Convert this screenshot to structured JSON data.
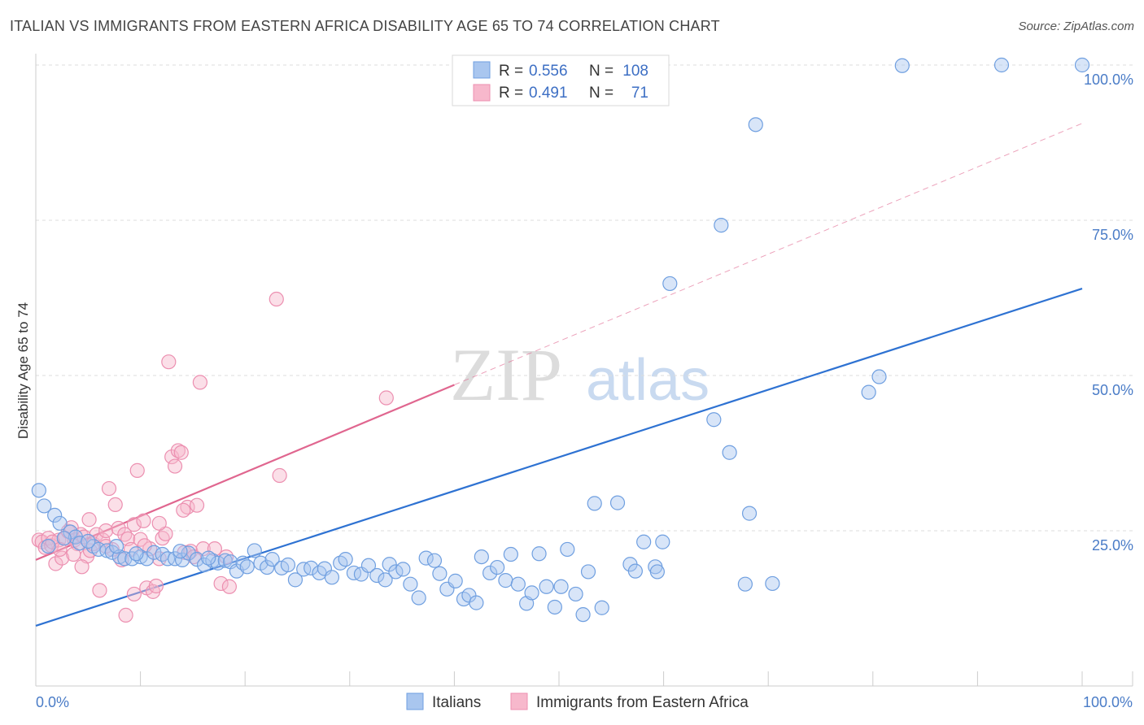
{
  "header": {
    "title": "ITALIAN VS IMMIGRANTS FROM EASTERN AFRICA DISABILITY AGE 65 TO 74 CORRELATION CHART",
    "source": "Source: ZipAtlas.com"
  },
  "watermark": {
    "zip": "ZIP",
    "atlas": "atlas"
  },
  "colors": {
    "blue_fill": "#a9c6ef",
    "blue_stroke": "#6f9fe0",
    "blue_line": "#2e72d2",
    "pink_fill": "#f7b8cc",
    "pink_stroke": "#ec8fb0",
    "pink_line": "#e0668f",
    "tick_color": "#4a7cc7",
    "grid": "#dddddd"
  },
  "legend_top": {
    "rows": [
      {
        "r_label": "R =",
        "r_value": "0.556",
        "n_label": "N =",
        "n_value": "108",
        "series": "blue"
      },
      {
        "r_label": "R =",
        "r_value": "0.491",
        "n_label": "N =",
        "n_value": "71",
        "series": "pink"
      }
    ]
  },
  "chart_data": {
    "type": "scatter",
    "title": "ITALIAN VS IMMIGRANTS FROM EASTERN AFRICA DISABILITY AGE 65 TO 74 CORRELATION CHART",
    "xlabel": "",
    "ylabel": "Disability Age 65 to 74",
    "xlim": [
      0,
      100
    ],
    "ylim": [
      0,
      100
    ],
    "x_tick_labels": [
      "0.0%",
      "100.0%"
    ],
    "y_ticks": [
      25,
      50,
      75,
      100
    ],
    "y_tick_labels": [
      "25.0%",
      "50.0%",
      "75.0%",
      "100.0%"
    ],
    "grid": true,
    "legend_position": "bottom",
    "series": [
      {
        "name": "Italians",
        "color": "#a9c6ef",
        "trend": {
          "x0": 0,
          "y0": 9.7,
          "x1": 100,
          "y1": 64,
          "style": "solid"
        },
        "points": [
          [
            0.3,
            31.5
          ],
          [
            0.8,
            29
          ],
          [
            1.8,
            27.5
          ],
          [
            2.3,
            26.2
          ],
          [
            3.3,
            24.8
          ],
          [
            3.8,
            24
          ],
          [
            4.2,
            23
          ],
          [
            5.5,
            22.5
          ],
          [
            6,
            22
          ],
          [
            6.8,
            21.8
          ],
          [
            7.3,
            21.5
          ],
          [
            8,
            20.8
          ],
          [
            8.5,
            20.5
          ],
          [
            9.2,
            20.5
          ],
          [
            10,
            20.8
          ],
          [
            10.6,
            20.5
          ],
          [
            11.3,
            21.5
          ],
          [
            12.1,
            21.2
          ],
          [
            12.6,
            20.5
          ],
          [
            13.3,
            20.5
          ],
          [
            14,
            20.3
          ],
          [
            14.6,
            21.4
          ],
          [
            15.4,
            20.4
          ],
          [
            16.1,
            19.5
          ],
          [
            16.9,
            20.2
          ],
          [
            17.4,
            19.8
          ],
          [
            18.1,
            20.2
          ],
          [
            18.6,
            20
          ],
          [
            19.2,
            18.5
          ],
          [
            19.8,
            19.8
          ],
          [
            20.2,
            19.2
          ],
          [
            20.9,
            21.8
          ],
          [
            21.5,
            19.8
          ],
          [
            22.1,
            19.1
          ],
          [
            22.6,
            20.4
          ],
          [
            23.5,
            19
          ],
          [
            24.1,
            19.5
          ],
          [
            24.8,
            17.1
          ],
          [
            25.6,
            18.8
          ],
          [
            26.3,
            19
          ],
          [
            27.1,
            18.2
          ],
          [
            27.6,
            18.9
          ],
          [
            28.3,
            17.5
          ],
          [
            29.1,
            19.8
          ],
          [
            29.6,
            20.4
          ],
          [
            30.4,
            18.2
          ],
          [
            31.1,
            18
          ],
          [
            31.8,
            19.4
          ],
          [
            32.6,
            17.8
          ],
          [
            33.4,
            17.1
          ],
          [
            33.8,
            19.6
          ],
          [
            34.4,
            18.4
          ],
          [
            35.1,
            18.8
          ],
          [
            35.8,
            16.4
          ],
          [
            36.6,
            14.2
          ],
          [
            37.3,
            20.6
          ],
          [
            38.1,
            20.2
          ],
          [
            38.6,
            18.1
          ],
          [
            39.3,
            15.6
          ],
          [
            40.1,
            16.9
          ],
          [
            40.9,
            14
          ],
          [
            41.4,
            14.6
          ],
          [
            42.1,
            13.4
          ],
          [
            42.6,
            20.8
          ],
          [
            43.4,
            18.2
          ],
          [
            44.1,
            19.1
          ],
          [
            44.9,
            17
          ],
          [
            45.4,
            21.2
          ],
          [
            46.1,
            16.4
          ],
          [
            46.9,
            13.3
          ],
          [
            47.4,
            15
          ],
          [
            48.1,
            21.3
          ],
          [
            48.8,
            16
          ],
          [
            49.6,
            12.7
          ],
          [
            50.2,
            16
          ],
          [
            50.8,
            22
          ],
          [
            51.6,
            14.8
          ],
          [
            52.3,
            11.5
          ],
          [
            52.8,
            18.4
          ],
          [
            53.4,
            29.4
          ],
          [
            54.1,
            12.6
          ],
          [
            55.6,
            29.5
          ],
          [
            56.8,
            19.6
          ],
          [
            57.3,
            18.5
          ],
          [
            58.1,
            23.2
          ],
          [
            59.2,
            19.2
          ],
          [
            59.4,
            18.4
          ],
          [
            59.9,
            23.2
          ],
          [
            60.6,
            64.8
          ],
          [
            64.8,
            42.9
          ],
          [
            65.5,
            74.2
          ],
          [
            66.3,
            37.6
          ],
          [
            67.8,
            16.4
          ],
          [
            68.2,
            27.8
          ],
          [
            68.8,
            90.4
          ],
          [
            70.4,
            16.5
          ],
          [
            79.6,
            47.3
          ],
          [
            80.6,
            49.8
          ],
          [
            82.8,
            99.9
          ],
          [
            92.3,
            100
          ],
          [
            100,
            100
          ],
          [
            1.2,
            22.5
          ],
          [
            2.7,
            23.8
          ],
          [
            5,
            23.3
          ],
          [
            7.7,
            22.5
          ],
          [
            9.6,
            21.3
          ],
          [
            13.8,
            21.7
          ],
          [
            16.5,
            20.6
          ]
        ]
      },
      {
        "name": "Immigrants from Eastern Africa",
        "color": "#f7b8cc",
        "trend": {
          "x0": 0,
          "y0": 20.3,
          "x1": 40,
          "y1": 48.5,
          "x2": 100,
          "y2": 90.6,
          "style": "solid-then-dashed"
        },
        "points": [
          [
            0.3,
            23.5
          ],
          [
            0.6,
            23.2
          ],
          [
            0.9,
            22.3
          ],
          [
            1.2,
            23.8
          ],
          [
            1.5,
            22.6
          ],
          [
            1.9,
            19.7
          ],
          [
            2.2,
            23.5
          ],
          [
            2.5,
            20.6
          ],
          [
            2.8,
            23.8
          ],
          [
            3.1,
            24.9
          ],
          [
            3.4,
            25.5
          ],
          [
            3.7,
            23.5
          ],
          [
            4,
            22.9
          ],
          [
            4.3,
            24.4
          ],
          [
            4.6,
            24
          ],
          [
            4.9,
            20.9
          ],
          [
            5.2,
            21.8
          ],
          [
            5.5,
            22.9
          ],
          [
            5.8,
            24.4
          ],
          [
            6.1,
            15.4
          ],
          [
            6.4,
            23.5
          ],
          [
            6.7,
            25
          ],
          [
            7,
            31.8
          ],
          [
            7.3,
            22
          ],
          [
            7.6,
            29.2
          ],
          [
            7.9,
            25.4
          ],
          [
            8.2,
            20.3
          ],
          [
            8.5,
            24.4
          ],
          [
            8.8,
            23.7
          ],
          [
            9.1,
            22
          ],
          [
            9.4,
            26
          ],
          [
            9.7,
            34.7
          ],
          [
            10,
            23.6
          ],
          [
            10.3,
            26.6
          ],
          [
            10.6,
            15.8
          ],
          [
            10.9,
            22.1
          ],
          [
            11.2,
            15.2
          ],
          [
            11.5,
            16.1
          ],
          [
            11.8,
            20.5
          ],
          [
            12.1,
            23.8
          ],
          [
            12.4,
            24.5
          ],
          [
            12.7,
            52.2
          ],
          [
            13,
            36.9
          ],
          [
            13.3,
            35.4
          ],
          [
            13.6,
            37.9
          ],
          [
            13.9,
            37.6
          ],
          [
            14.2,
            21.5
          ],
          [
            14.5,
            28.8
          ],
          [
            14.8,
            21.7
          ],
          [
            15.1,
            20.8
          ],
          [
            15.4,
            29.1
          ],
          [
            15.7,
            48.9
          ],
          [
            16,
            22.1
          ],
          [
            17.7,
            16.5
          ],
          [
            17.1,
            22.1
          ],
          [
            18.2,
            20.8
          ],
          [
            18.5,
            16
          ],
          [
            23,
            62.3
          ],
          [
            23.3,
            33.9
          ],
          [
            33.5,
            46.4
          ],
          [
            1.6,
            23.2
          ],
          [
            2.3,
            22
          ],
          [
            3.6,
            21.2
          ],
          [
            4.4,
            19.2
          ],
          [
            5.1,
            26.8
          ],
          [
            6.7,
            22.5
          ],
          [
            8.6,
            11.4
          ],
          [
            9.4,
            14.8
          ],
          [
            10.4,
            22.6
          ],
          [
            11.8,
            26.2
          ],
          [
            14.1,
            28.3
          ]
        ]
      }
    ]
  }
}
